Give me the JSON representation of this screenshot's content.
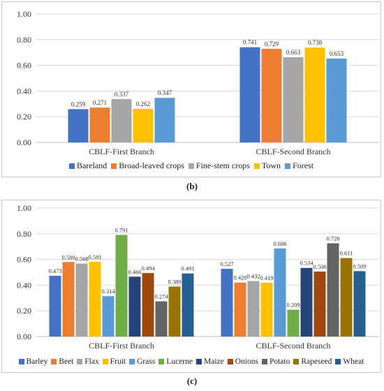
{
  "panels": [
    {
      "caption": "(b)",
      "chart_data": {
        "type": "bar",
        "categories": [
          "CBLF-First Branch",
          "CBLF-Second Branch"
        ],
        "series": [
          {
            "name": "Bareland",
            "color": "#4472c4",
            "values": [
              0.259,
              0.741
            ]
          },
          {
            "name": "Broad-leaved crops",
            "color": "#ed7d31",
            "values": [
              0.271,
              0.729
            ]
          },
          {
            "name": "Fine-stem crops",
            "color": "#a5a5a5",
            "values": [
              0.337,
              0.663
            ]
          },
          {
            "name": "Town",
            "color": "#ffc000",
            "values": [
              0.262,
              0.738
            ]
          },
          {
            "name": "Forest",
            "color": "#5b9bd5",
            "values": [
              0.347,
              0.653
            ]
          }
        ],
        "ylim": [
          0,
          1
        ],
        "yticks": [
          "0.00",
          "0.20",
          "0.40",
          "0.60",
          "0.80",
          "1.00"
        ],
        "grid": true,
        "legend": "bottom"
      }
    },
    {
      "caption": "(c)",
      "chart_data": {
        "type": "bar",
        "categories": [
          "CBLF-First Branch",
          "CBLF-Second Branch"
        ],
        "series": [
          {
            "name": "Barley",
            "color": "#4472c4",
            "values": [
              0.473,
              0.527
            ]
          },
          {
            "name": "Beet",
            "color": "#ed7d31",
            "values": [
              0.58,
              0.42
            ]
          },
          {
            "name": "Flax",
            "color": "#a5a5a5",
            "values": [
              0.568,
              0.432
            ]
          },
          {
            "name": "Fruit",
            "color": "#ffc000",
            "values": [
              0.581,
              0.419
            ]
          },
          {
            "name": "Grass",
            "color": "#5b9bd5",
            "values": [
              0.314,
              0.686
            ]
          },
          {
            "name": "Lucerne",
            "color": "#70ad47",
            "values": [
              0.791,
              0.209
            ]
          },
          {
            "name": "Maize",
            "color": "#264478",
            "values": [
              0.466,
              0.534
            ]
          },
          {
            "name": "Onions",
            "color": "#9e480e",
            "values": [
              0.494,
              0.506
            ]
          },
          {
            "name": "Potato",
            "color": "#636363",
            "values": [
              0.274,
              0.726
            ]
          },
          {
            "name": "Rapeseed",
            "color": "#997300",
            "values": [
              0.389,
              0.611
            ]
          },
          {
            "name": "Wheat",
            "color": "#255e91",
            "values": [
              0.491,
              0.509
            ]
          }
        ],
        "ylim": [
          0,
          1
        ],
        "yticks": [
          "0.00",
          "0.20",
          "0.40",
          "0.60",
          "0.80",
          "1.00"
        ],
        "grid": true,
        "legend": "bottom"
      }
    }
  ]
}
